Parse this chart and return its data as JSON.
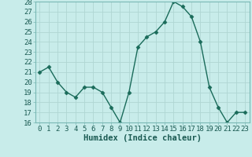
{
  "x": [
    0,
    1,
    2,
    3,
    4,
    5,
    6,
    7,
    8,
    9,
    10,
    11,
    12,
    13,
    14,
    15,
    16,
    17,
    18,
    19,
    20,
    21,
    22,
    23
  ],
  "y": [
    21.0,
    21.5,
    20.0,
    19.0,
    18.5,
    19.5,
    19.5,
    19.0,
    17.5,
    16.0,
    19.0,
    23.5,
    24.5,
    25.0,
    26.0,
    28.0,
    27.5,
    26.5,
    24.0,
    19.5,
    17.5,
    16.0,
    17.0,
    17.0
  ],
  "line_color": "#1a6b5a",
  "marker": "D",
  "marker_size": 2.5,
  "bg_color": "#c8ecea",
  "grid_color": "#afd6d3",
  "xlabel": "Humidex (Indice chaleur)",
  "xlabel_fontsize": 7.5,
  "ylim": [
    16,
    28
  ],
  "xlim": [
    -0.5,
    23.5
  ],
  "yticks": [
    16,
    17,
    18,
    19,
    20,
    21,
    22,
    23,
    24,
    25,
    26,
    27,
    28
  ],
  "xticks": [
    0,
    1,
    2,
    3,
    4,
    5,
    6,
    7,
    8,
    9,
    10,
    11,
    12,
    13,
    14,
    15,
    16,
    17,
    18,
    19,
    20,
    21,
    22,
    23
  ],
  "tick_fontsize": 6.5
}
